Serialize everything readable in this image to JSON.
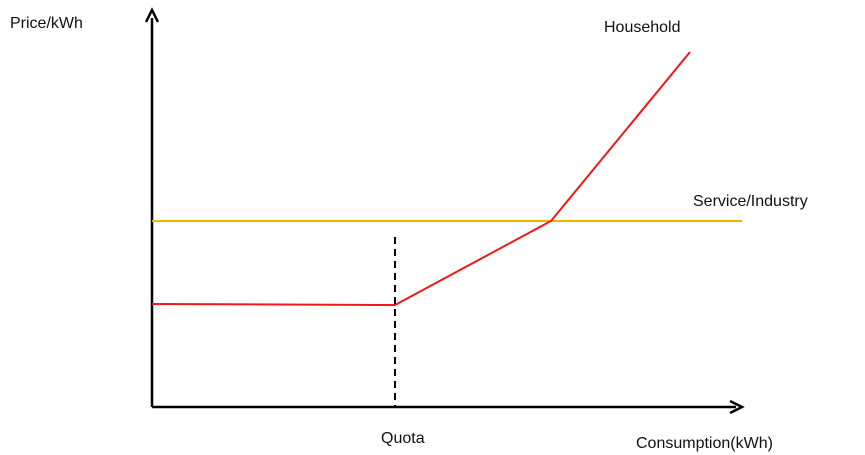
{
  "axes": {
    "y_label": "Price/kWh",
    "x_label": "Consumption(kWh)"
  },
  "curves": {
    "household": "Household",
    "service": "Service/Industry"
  },
  "markers": {
    "quota": "Quota"
  }
}
